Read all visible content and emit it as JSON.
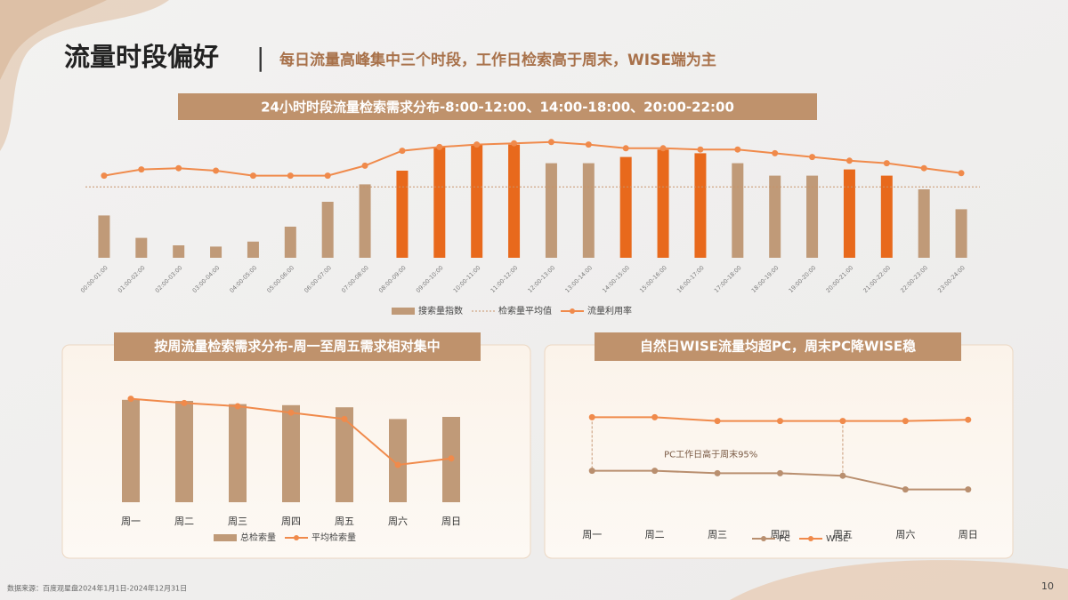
{
  "title": "流量时段偏好",
  "separator": "|",
  "subtitle": "每日流量高峰集中三个时段，工作日检索高于周末，WISE端为主",
  "source": "数据来源：百度观星盘2024年1月1日-2024年12月31日",
  "page_number": "10",
  "chart_data": [
    {
      "type": "combo",
      "title": "24小时时段流量检索需求分布-8:00-12:00、14:00-18:00、20:00-22:00",
      "categories": [
        "00:00-01:00",
        "01:00-02:00",
        "02:00-03:00",
        "03:00-04:00",
        "04:00-05:00",
        "05:00-06:00",
        "06:00-07:00",
        "07:00-08:00",
        "08:00-09:00",
        "09:00-10:00",
        "10:00-11:00",
        "11:00-12:00",
        "12:00-13:00",
        "13:00-14:00",
        "14:00-15:00",
        "15:00-16:00",
        "16:00-17:00",
        "17:00-18:00",
        "18:00-19:00",
        "19:00-20:00",
        "20:00-21:00",
        "21:00-22:00",
        "22:00-23:00",
        "23:00-24:00"
      ],
      "ylim": [
        0,
        100
      ],
      "series": [
        {
          "name": "搜索量指数",
          "type": "bar",
          "color": "#c09a78",
          "colors": [
            "#c09a78",
            "#c09a78",
            "#c09a78",
            "#c09a78",
            "#c09a78",
            "#c09a78",
            "#c09a78",
            "#c09a78",
            "#e8691c",
            "#e8691c",
            "#e8691c",
            "#e8691c",
            "#c09a78",
            "#c09a78",
            "#e8691c",
            "#e8691c",
            "#e8691c",
            "#c09a78",
            "#c09a78",
            "#c09a78",
            "#e8691c",
            "#e8691c",
            "#c09a78",
            "#c09a78"
          ],
          "values": [
            34,
            16,
            10,
            9,
            13,
            25,
            45,
            59,
            70,
            89,
            91,
            91,
            76,
            76,
            81,
            87,
            84,
            76,
            66,
            66,
            71,
            66,
            55,
            39
          ]
        },
        {
          "name": "检索量平均值",
          "type": "average",
          "color": "#c8936b",
          "value": 57
        },
        {
          "name": "流量利用率",
          "type": "line",
          "color": "#f08a4b",
          "values": [
            66,
            71,
            72,
            70,
            66,
            66,
            66,
            74,
            86,
            89,
            91,
            92,
            93,
            91,
            88,
            88,
            87,
            87,
            84,
            81,
            78,
            76,
            72,
            68
          ]
        }
      ]
    },
    {
      "type": "combo",
      "title": "按周流量检索需求分布-周一至周五需求相对集中",
      "categories": [
        "周一",
        "周二",
        "周三",
        "周四",
        "周五",
        "周六",
        "周日"
      ],
      "ylim": [
        0,
        100
      ],
      "series": [
        {
          "name": "总检索量",
          "type": "bar",
          "color": "#c09a78",
          "values": [
            96,
            95,
            92,
            91,
            89,
            78,
            80
          ]
        },
        {
          "name": "平均检索量",
          "type": "line",
          "color": "#f08a4b",
          "values": [
            97,
            93,
            90,
            84,
            78,
            35,
            41
          ]
        }
      ]
    },
    {
      "type": "line",
      "title": "自然日WISE流量均超PC，周末PC降WISE稳",
      "categories": [
        "周一",
        "周二",
        "周三",
        "周四",
        "周五",
        "周六",
        "周日"
      ],
      "ylim": [
        0,
        100
      ],
      "annotation": "PC工作日高于周末95%",
      "series": [
        {
          "name": "PC",
          "type": "line",
          "color": "#b98f6f",
          "values": [
            36,
            36,
            34,
            34,
            32,
            21,
            21
          ]
        },
        {
          "name": "WISE",
          "type": "line",
          "color": "#f08a4b",
          "values": [
            79,
            79,
            76,
            76,
            76,
            76,
            77
          ]
        }
      ]
    }
  ]
}
